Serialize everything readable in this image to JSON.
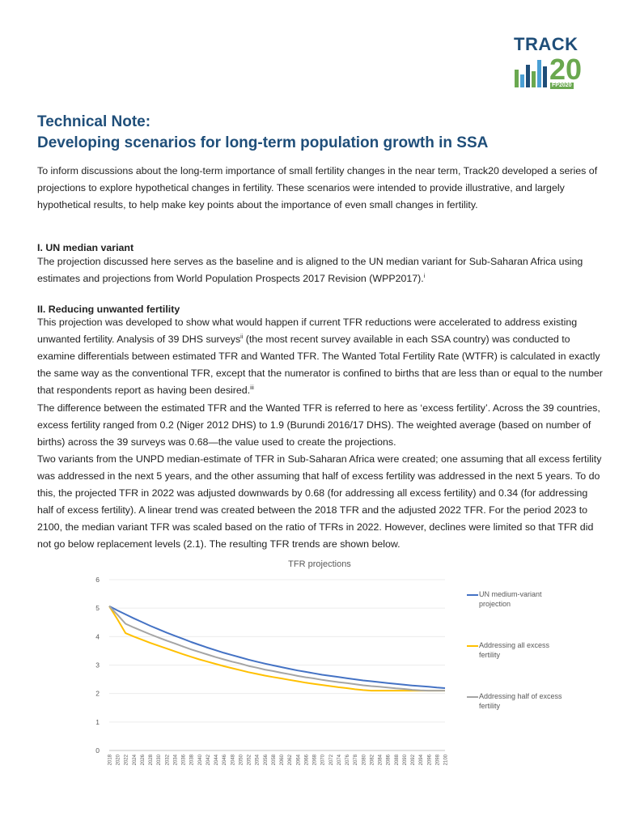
{
  "logo": {
    "word": "TRACK",
    "number": "20",
    "tag": "FP2020",
    "colors": {
      "blue": "#1f4e79",
      "green": "#6aa84f"
    }
  },
  "title": {
    "line1": "Technical Note:",
    "line2": "Developing scenarios for long-term population growth in SSA"
  },
  "intro": "To inform discussions about the long-term importance of small fertility changes in the near term, Track20 developed a series of projections to explore hypothetical changes in fertility.  These scenarios were intended to provide illustrative, and largely hypothetical results, to help make key points about the importance of even small changes in fertility.",
  "section1": {
    "heading": "I.   UN median variant",
    "text": "The projection discussed here serves as the baseline and is aligned to the UN median variant for Sub-Saharan Africa using estimates and projections from World Population Prospects 2017 Revision (WPP2017).",
    "note": "i"
  },
  "section2": {
    "heading": "II.  Reducing unwanted fertility",
    "p1a": "This projection was developed to show what would happen if current TFR reductions were accelerated to address existing unwanted fertility.  Analysis of 39 DHS surveys",
    "p1note1": "ii",
    "p1b": " (the most recent survey available in each SSA country) was conducted to examine differentials between estimated TFR and Wanted TFR.  The Wanted Total Fertility Rate (WTFR) is calculated in exactly the same way as the conventional TFR, except that the numerator is confined to births that are less than or equal to the number that respondents report as having been desired.",
    "p1note2": "iii",
    "p2": "The difference between the estimated TFR and the Wanted TFR is referred to here as ‘excess  fertility’.  Across the 39 countries, excess fertility ranged from 0.2 (Niger 2012 DHS) to 1.9 (Burundi 2016/17 DHS).  The weighted average (based on number of births) across the 39 surveys was 0.68—the value used to create the projections.",
    "p3": "Two variants from the UNPD median-estimate of TFR in Sub-Saharan Africa were created; one assuming that all excess fertility was addressed in the next 5 years, and the other assuming that half of excess fertility was addressed in the next 5 years.  To do this, the projected TFR in 2022 was adjusted downwards by 0.68 (for addressing all excess fertility) and 0.34 (for addressing half of excess fertility).  A linear trend was created between the 2018 TFR and the adjusted 2022 TFR.  For the period 2023 to 2100, the median variant TFR was scaled based on the ratio of TFRs in 2022.  However, declines were limited so that TFR did not go below replacement levels (2.1).  The resulting TFR trends are shown below."
  },
  "chart_data": {
    "type": "line",
    "title": "TFR projections",
    "xlabel": "",
    "ylabel": "",
    "ylim": [
      0,
      6
    ],
    "yticks": [
      "0",
      "1",
      "2",
      "3",
      "4",
      "5",
      "6"
    ],
    "x": [
      "2018",
      "2020",
      "2022",
      "2024",
      "2026",
      "2028",
      "2030",
      "2032",
      "2034",
      "2036",
      "2038",
      "2040",
      "2042",
      "2044",
      "2046",
      "2048",
      "2050",
      "2052",
      "2054",
      "2056",
      "2058",
      "2060",
      "2062",
      "2064",
      "2066",
      "2068",
      "2070",
      "2072",
      "2074",
      "2076",
      "2078",
      "2080",
      "2082",
      "2084",
      "2086",
      "2088",
      "2090",
      "2092",
      "2094",
      "2096",
      "2098",
      "2100"
    ],
    "grid": true,
    "legend_position": "right",
    "series": [
      {
        "name": "UN medium-variant projection",
        "color": "#4472c4",
        "values": [
          5.07,
          4.92,
          4.78,
          4.64,
          4.51,
          4.38,
          4.26,
          4.14,
          4.03,
          3.92,
          3.81,
          3.71,
          3.61,
          3.52,
          3.43,
          3.35,
          3.27,
          3.19,
          3.12,
          3.05,
          2.99,
          2.93,
          2.87,
          2.81,
          2.76,
          2.71,
          2.66,
          2.62,
          2.58,
          2.54,
          2.5,
          2.46,
          2.43,
          2.4,
          2.37,
          2.34,
          2.31,
          2.28,
          2.26,
          2.24,
          2.21,
          2.19
        ]
      },
      {
        "name": "Addressing all excess fertility",
        "color": "#ffc000",
        "values": [
          5.07,
          4.61,
          4.12,
          4.0,
          3.89,
          3.78,
          3.68,
          3.58,
          3.48,
          3.38,
          3.29,
          3.2,
          3.12,
          3.04,
          2.96,
          2.89,
          2.82,
          2.75,
          2.69,
          2.63,
          2.58,
          2.53,
          2.48,
          2.43,
          2.38,
          2.34,
          2.3,
          2.26,
          2.22,
          2.19,
          2.15,
          2.12,
          2.1,
          2.1,
          2.1,
          2.1,
          2.1,
          2.1,
          2.1,
          2.1,
          2.1,
          2.1
        ]
      },
      {
        "name": "Addressing half of excess fertility",
        "color": "#a5a5a5",
        "values": [
          5.07,
          4.77,
          4.45,
          4.32,
          4.2,
          4.08,
          3.97,
          3.86,
          3.76,
          3.65,
          3.55,
          3.46,
          3.37,
          3.28,
          3.2,
          3.12,
          3.05,
          2.97,
          2.91,
          2.84,
          2.79,
          2.73,
          2.68,
          2.62,
          2.57,
          2.53,
          2.48,
          2.44,
          2.4,
          2.37,
          2.33,
          2.29,
          2.26,
          2.24,
          2.21,
          2.18,
          2.16,
          2.13,
          2.11,
          2.1,
          2.1,
          2.1
        ]
      }
    ]
  }
}
